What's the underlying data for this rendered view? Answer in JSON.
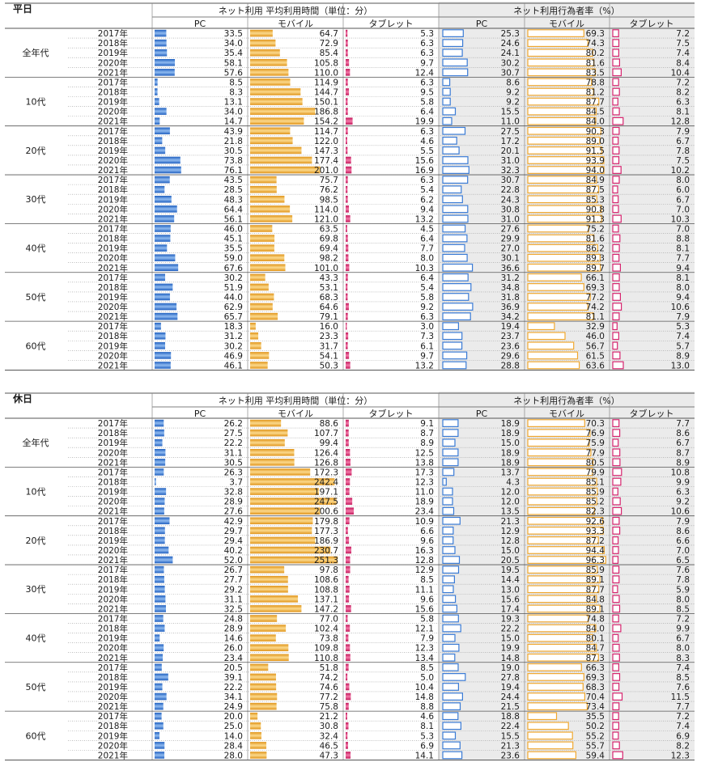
{
  "chart_data": [
    {
      "type": "table",
      "title": "平日",
      "header_time": "ネット利用 平均利用時間（単位：分）",
      "header_rate": "ネット利用行為者率（%）",
      "columns": [
        "PC",
        "モバイル",
        "タブレット",
        "PC",
        "モバイル",
        "タブレット"
      ],
      "years": [
        "2017年",
        "2018年",
        "2019年",
        "2020年",
        "2021年"
      ],
      "groups": [
        {
          "name": "全年代",
          "rows": [
            [
              33.5,
              64.7,
              5.3,
              25.3,
              69.3,
              7.2
            ],
            [
              34.0,
              72.9,
              6.3,
              24.6,
              74.3,
              7.5
            ],
            [
              35.4,
              85.4,
              6.3,
              24.1,
              80.2,
              7.4
            ],
            [
              58.1,
              105.8,
              9.7,
              30.2,
              81.6,
              8.4
            ],
            [
              57.6,
              110.0,
              12.4,
              30.7,
              83.5,
              10.4
            ]
          ]
        },
        {
          "name": "10代",
          "rows": [
            [
              8.5,
              114.9,
              6.3,
              8.6,
              78.8,
              7.2
            ],
            [
              8.3,
              144.7,
              9.5,
              9.2,
              81.2,
              8.2
            ],
            [
              13.1,
              150.1,
              5.8,
              9.2,
              87.7,
              6.3
            ],
            [
              34.0,
              186.8,
              6.4,
              15.5,
              84.5,
              8.1
            ],
            [
              14.7,
              154.2,
              19.9,
              11.0,
              84.0,
              12.8
            ]
          ]
        },
        {
          "name": "20代",
          "rows": [
            [
              43.9,
              114.7,
              6.3,
              27.5,
              90.3,
              7.9
            ],
            [
              21.8,
              122.0,
              4.6,
              17.2,
              89.0,
              6.7
            ],
            [
              30.5,
              147.3,
              5.5,
              20.1,
              91.5,
              7.8
            ],
            [
              73.8,
              177.4,
              15.6,
              31.0,
              93.9,
              7.5
            ],
            [
              76.1,
              201.0,
              16.9,
              32.3,
              94.0,
              10.2
            ]
          ]
        },
        {
          "name": "30代",
          "rows": [
            [
              43.5,
              75.7,
              6.3,
              30.7,
              84.9,
              8.0
            ],
            [
              28.5,
              76.2,
              5.4,
              22.8,
              87.5,
              6.0
            ],
            [
              48.3,
              98.5,
              6.2,
              24.3,
              85.3,
              6.7
            ],
            [
              64.4,
              114.0,
              9.4,
              30.8,
              90.8,
              7.0
            ],
            [
              56.1,
              121.0,
              13.2,
              31.0,
              91.3,
              10.3
            ]
          ]
        },
        {
          "name": "40代",
          "rows": [
            [
              46.0,
              63.5,
              4.5,
              27.6,
              75.2,
              7.0
            ],
            [
              45.1,
              69.8,
              6.4,
              29.9,
              81.6,
              8.8
            ],
            [
              35.5,
              69.4,
              7.7,
              27.0,
              86.2,
              8.1
            ],
            [
              59.0,
              98.2,
              8.0,
              30.1,
              89.3,
              7.7
            ],
            [
              67.6,
              101.0,
              10.3,
              36.6,
              89.7,
              9.4
            ]
          ]
        },
        {
          "name": "50代",
          "rows": [
            [
              30.2,
              43.3,
              6.4,
              31.2,
              66.1,
              8.1
            ],
            [
              51.9,
              53.1,
              5.4,
              34.8,
              69.3,
              8.0
            ],
            [
              44.0,
              68.3,
              5.8,
              31.8,
              77.2,
              9.4
            ],
            [
              62.9,
              64.6,
              9.2,
              36.9,
              74.2,
              10.6
            ],
            [
              65.7,
              79.1,
              6.3,
              34.2,
              81.1,
              7.9
            ]
          ]
        },
        {
          "name": "60代",
          "rows": [
            [
              18.3,
              16.0,
              3.0,
              19.4,
              32.9,
              5.3
            ],
            [
              31.2,
              23.3,
              7.3,
              23.7,
              46.0,
              7.4
            ],
            [
              30.2,
              31.7,
              6.1,
              23.6,
              56.7,
              5.7
            ],
            [
              46.9,
              54.1,
              9.7,
              29.6,
              61.5,
              8.9
            ],
            [
              46.1,
              50.3,
              13.2,
              28.8,
              63.6,
              13.0
            ]
          ]
        }
      ]
    },
    {
      "type": "table",
      "title": "休日",
      "header_time": "ネット利用 平均利用時間（単位：分）",
      "header_rate": "ネット利用行為者率（%）",
      "columns": [
        "PC",
        "モバイル",
        "タブレット",
        "PC",
        "モバイル",
        "タブレット"
      ],
      "years": [
        "2017年",
        "2018年",
        "2019年",
        "2020年",
        "2021年"
      ],
      "groups": [
        {
          "name": "全年代",
          "rows": [
            [
              26.2,
              88.6,
              9.1,
              18.9,
              70.3,
              7.7
            ],
            [
              27.5,
              107.7,
              8.7,
              18.9,
              76.9,
              8.6
            ],
            [
              22.2,
              99.4,
              8.9,
              15.0,
              75.9,
              6.7
            ],
            [
              31.1,
              126.4,
              12.5,
              18.9,
              77.9,
              8.7
            ],
            [
              30.5,
              126.8,
              13.8,
              18.9,
              80.5,
              8.9
            ]
          ]
        },
        {
          "name": "10代",
          "rows": [
            [
              26.3,
              172.3,
              17.3,
              13.7,
              79.9,
              10.8
            ],
            [
              3.7,
              242.4,
              12.3,
              4.3,
              85.1,
              9.9
            ],
            [
              32.8,
              197.1,
              11.0,
              12.0,
              85.9,
              6.3
            ],
            [
              28.9,
              247.5,
              18.9,
              12.0,
              85.2,
              9.2
            ],
            [
              27.6,
              200.6,
              23.4,
              13.5,
              82.3,
              10.6
            ]
          ]
        },
        {
          "name": "20代",
          "rows": [
            [
              42.9,
              179.8,
              10.9,
              21.3,
              92.6,
              7.9
            ],
            [
              29.7,
              177.3,
              6.6,
              12.9,
              93.3,
              8.6
            ],
            [
              29.4,
              186.9,
              9.6,
              12.8,
              87.2,
              6.6
            ],
            [
              40.2,
              230.7,
              16.3,
              15.0,
              94.4,
              7.0
            ],
            [
              52.0,
              251.3,
              12.8,
              20.5,
              96.3,
              6.5
            ]
          ]
        },
        {
          "name": "30代",
          "rows": [
            [
              26.7,
              97.8,
              12.9,
              19.5,
              85.9,
              7.6
            ],
            [
              27.7,
              108.6,
              8.5,
              14.4,
              89.1,
              7.8
            ],
            [
              29.2,
              108.8,
              11.1,
              13.0,
              87.7,
              5.9
            ],
            [
              31.1,
              137.1,
              9.6,
              15.6,
              84.8,
              8.0
            ],
            [
              32.5,
              147.2,
              15.6,
              17.4,
              89.1,
              8.5
            ]
          ]
        },
        {
          "name": "40代",
          "rows": [
            [
              24.8,
              77.0,
              5.8,
              19.3,
              74.8,
              7.2
            ],
            [
              28.9,
              102.4,
              12.1,
              22.2,
              84.0,
              9.9
            ],
            [
              14.6,
              73.8,
              7.9,
              15.0,
              80.1,
              6.7
            ],
            [
              26.0,
              109.8,
              12.3,
              19.9,
              84.7,
              8.0
            ],
            [
              23.4,
              110.8,
              13.4,
              14.8,
              87.3,
              8.3
            ]
          ]
        },
        {
          "name": "50代",
          "rows": [
            [
              20.5,
              51.8,
              8.5,
              19.0,
              66.3,
              7.4
            ],
            [
              39.1,
              74.2,
              5.0,
              27.8,
              69.3,
              8.5
            ],
            [
              22.2,
              74.6,
              10.4,
              19.4,
              68.3,
              7.6
            ],
            [
              34.1,
              77.2,
              14.8,
              24.4,
              70.4,
              11.5
            ],
            [
              24.9,
              75.8,
              8.8,
              21.5,
              73.4,
              7.7
            ]
          ]
        },
        {
          "name": "60代",
          "rows": [
            [
              20.0,
              21.2,
              4.6,
              18.8,
              35.5,
              7.2
            ],
            [
              25.0,
              30.8,
              8.1,
              22.4,
              50.2,
              7.4
            ],
            [
              14.0,
              32.4,
              5.3,
              15.5,
              55.2,
              6.9
            ],
            [
              28.4,
              46.5,
              6.9,
              21.3,
              55.7,
              8.2
            ],
            [
              28.0,
              47.3,
              14.1,
              23.6,
              59.4,
              12.3
            ]
          ]
        }
      ]
    }
  ],
  "colors": {
    "pc": "#3a7bd5",
    "mobile": "#f0a830",
    "tablet": "#d6246e",
    "rate_bg": "#ebebeb",
    "rule": "#555555",
    "dotted": "#999999"
  },
  "bar_scale": {
    "time_max": 260,
    "rate_max": 100
  }
}
